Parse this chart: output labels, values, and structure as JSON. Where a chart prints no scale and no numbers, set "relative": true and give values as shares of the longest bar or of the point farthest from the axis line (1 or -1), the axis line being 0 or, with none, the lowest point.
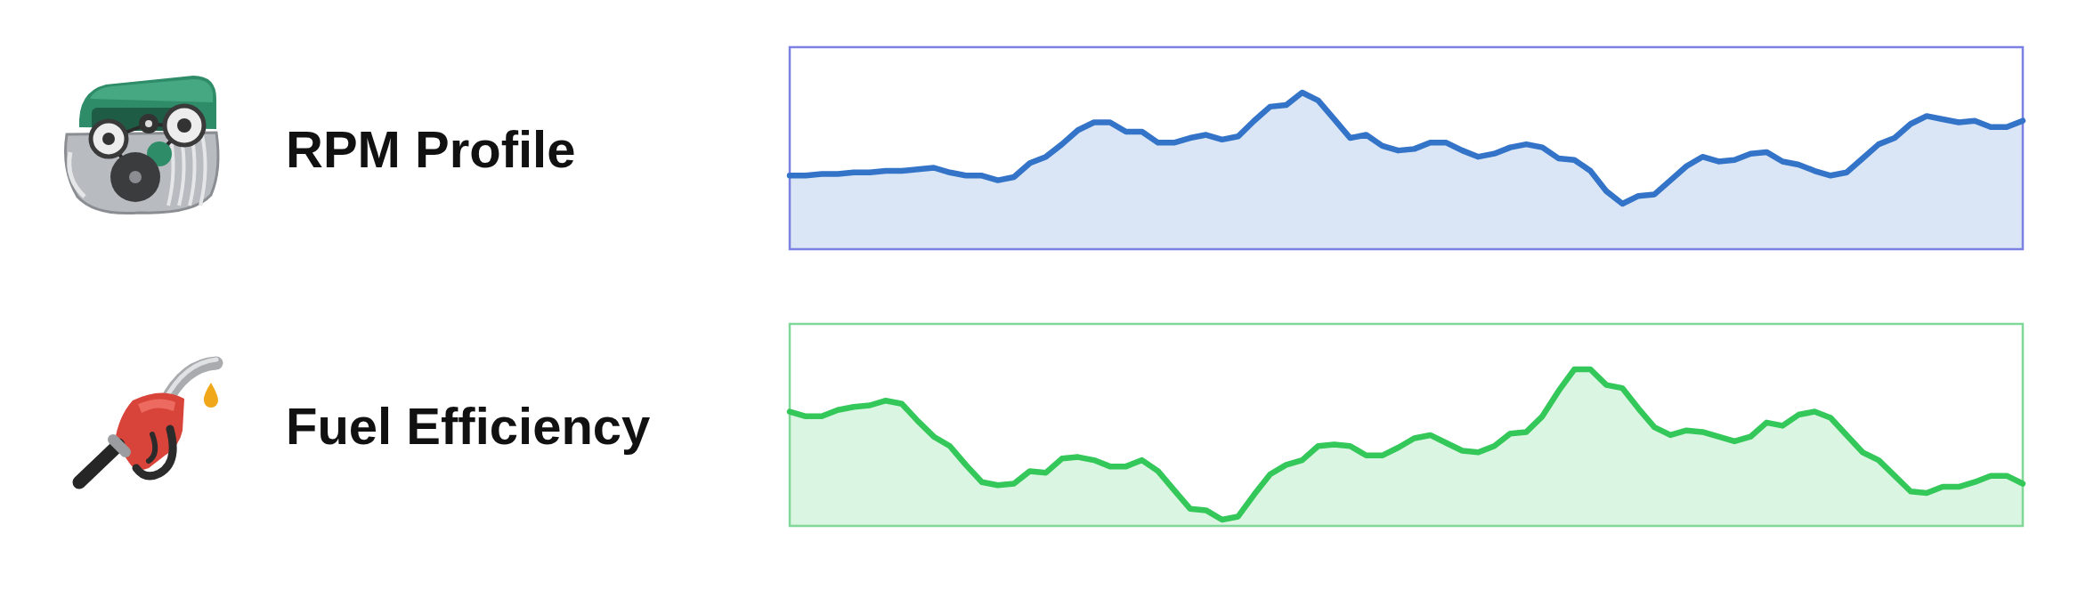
{
  "chart_data": [
    {
      "type": "area",
      "title": "RPM Profile",
      "relative": true,
      "color": "#3373c8",
      "categories": [
        null,
        null,
        null,
        null,
        null,
        null,
        null,
        null,
        null,
        null,
        null,
        null,
        null,
        null,
        null,
        null,
        null,
        null,
        null,
        null,
        null,
        null,
        null,
        null,
        null,
        null,
        null,
        null,
        null,
        null,
        null,
        null,
        null,
        null,
        null,
        null,
        null,
        null,
        null,
        null,
        null,
        null,
        null,
        null,
        null,
        null,
        null,
        null,
        null,
        null,
        null,
        null,
        null,
        null,
        null,
        null,
        null,
        null,
        null,
        null,
        null,
        null,
        null,
        null,
        null,
        null,
        null,
        null,
        null,
        null,
        null,
        null,
        null,
        null,
        null,
        null,
        null,
        null
      ],
      "values": [
        0.47,
        0.47,
        0.48,
        0.48,
        0.49,
        0.49,
        0.5,
        0.5,
        0.51,
        0.52,
        0.49,
        0.47,
        0.47,
        0.44,
        0.46,
        0.55,
        0.59,
        0.67,
        0.76,
        0.81,
        0.81,
        0.75,
        0.75,
        0.68,
        0.68,
        0.71,
        0.73,
        0.7,
        0.72,
        0.82,
        0.91,
        0.92,
        1.0,
        0.95,
        0.83,
        0.71,
        0.73,
        0.66,
        0.63,
        0.64,
        0.68,
        0.68,
        0.63,
        0.59,
        0.61,
        0.65,
        0.67,
        0.65,
        0.58,
        0.57,
        0.5,
        0.37,
        0.29,
        0.34,
        0.35,
        0.44,
        0.53,
        0.59,
        0.56,
        0.57,
        0.61,
        0.62,
        0.56,
        0.54,
        0.5,
        0.47,
        0.49,
        0.58,
        0.67,
        0.71,
        0.8,
        0.85,
        0.83,
        0.81,
        0.82,
        0.78,
        0.78,
        0.82
      ]
    },
    {
      "type": "area",
      "title": "Fuel Efficiency",
      "relative": true,
      "color": "#34c759",
      "categories": [
        null,
        null,
        null,
        null,
        null,
        null,
        null,
        null,
        null,
        null,
        null,
        null,
        null,
        null,
        null,
        null,
        null,
        null,
        null,
        null,
        null,
        null,
        null,
        null,
        null,
        null,
        null,
        null,
        null,
        null,
        null,
        null,
        null,
        null,
        null,
        null,
        null,
        null,
        null,
        null,
        null,
        null,
        null,
        null,
        null,
        null,
        null,
        null,
        null,
        null,
        null,
        null,
        null,
        null,
        null,
        null,
        null,
        null,
        null,
        null,
        null,
        null,
        null,
        null,
        null,
        null,
        null,
        null,
        null,
        null,
        null,
        null,
        null,
        null,
        null,
        null,
        null,
        null
      ],
      "values": [
        0.73,
        0.7,
        0.7,
        0.74,
        0.76,
        0.77,
        0.8,
        0.78,
        0.67,
        0.57,
        0.51,
        0.39,
        0.28,
        0.26,
        0.27,
        0.35,
        0.34,
        0.43,
        0.44,
        0.42,
        0.38,
        0.38,
        0.42,
        0.35,
        0.23,
        0.11,
        0.1,
        0.04,
        0.06,
        0.2,
        0.33,
        0.39,
        0.42,
        0.51,
        0.52,
        0.51,
        0.45,
        0.45,
        0.5,
        0.56,
        0.58,
        0.53,
        0.48,
        0.47,
        0.51,
        0.59,
        0.6,
        0.7,
        0.86,
        1.0,
        1.0,
        0.9,
        0.88,
        0.75,
        0.63,
        0.58,
        0.61,
        0.6,
        0.57,
        0.54,
        0.57,
        0.66,
        0.64,
        0.71,
        0.73,
        0.69,
        0.58,
        0.47,
        0.42,
        0.32,
        0.22,
        0.21,
        0.25,
        0.25,
        0.28,
        0.32,
        0.32,
        0.27
      ]
    }
  ]
}
